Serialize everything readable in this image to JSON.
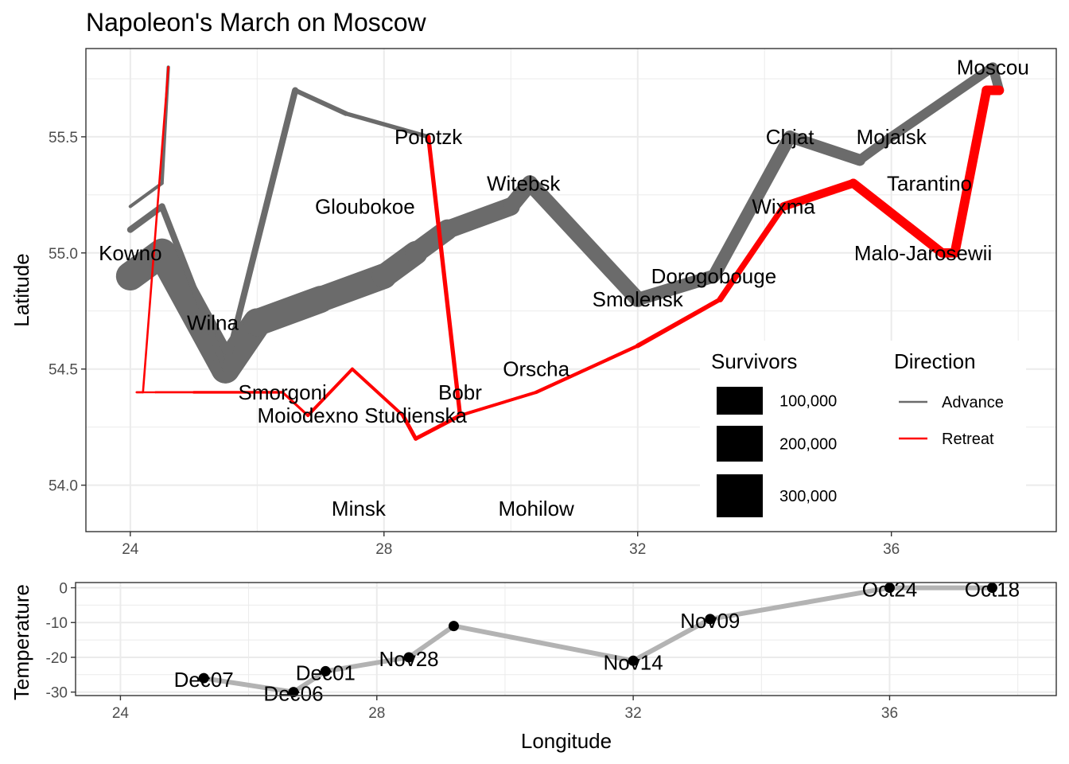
{
  "chart_data": [
    {
      "type": "line",
      "title": "Napoleon's March on Moscow",
      "xlabel": "",
      "ylabel": "Latitude",
      "xlim": [
        23.3,
        38.6
      ],
      "ylim": [
        53.8,
        55.88
      ],
      "x_ticks": [
        24,
        28,
        32,
        36
      ],
      "y_ticks": [
        54.0,
        54.5,
        55.0,
        55.5
      ],
      "x_tick_labels": [
        "24",
        "28",
        "32",
        "36"
      ],
      "y_tick_labels": [
        "54.0",
        "54.5",
        "55.0",
        "55.5"
      ],
      "grid": true,
      "colors": {
        "Advance": "#6b6b6b",
        "Retreat": "#ff0000"
      },
      "troops": [
        {
          "lon": 24.0,
          "lat": 54.9,
          "survivors": 340000,
          "direction": "Advance",
          "group": 1
        },
        {
          "lon": 24.5,
          "lat": 55.0,
          "survivors": 340000,
          "direction": "Advance",
          "group": 1
        },
        {
          "lon": 25.5,
          "lat": 54.5,
          "survivors": 340000,
          "direction": "Advance",
          "group": 1
        },
        {
          "lon": 26.0,
          "lat": 54.7,
          "survivors": 320000,
          "direction": "Advance",
          "group": 1
        },
        {
          "lon": 27.0,
          "lat": 54.8,
          "survivors": 300000,
          "direction": "Advance",
          "group": 1
        },
        {
          "lon": 28.0,
          "lat": 54.9,
          "survivors": 280000,
          "direction": "Advance",
          "group": 1
        },
        {
          "lon": 28.5,
          "lat": 55.0,
          "survivors": 240000,
          "direction": "Advance",
          "group": 1
        },
        {
          "lon": 29.0,
          "lat": 55.1,
          "survivors": 210000,
          "direction": "Advance",
          "group": 1
        },
        {
          "lon": 30.0,
          "lat": 55.2,
          "survivors": 180000,
          "direction": "Advance",
          "group": 1
        },
        {
          "lon": 30.3,
          "lat": 55.3,
          "survivors": 175000,
          "direction": "Advance",
          "group": 1
        },
        {
          "lon": 32.0,
          "lat": 54.8,
          "survivors": 145000,
          "direction": "Advance",
          "group": 1
        },
        {
          "lon": 33.2,
          "lat": 54.9,
          "survivors": 140000,
          "direction": "Advance",
          "group": 1
        },
        {
          "lon": 34.4,
          "lat": 55.5,
          "survivors": 127100,
          "direction": "Advance",
          "group": 1
        },
        {
          "lon": 35.5,
          "lat": 55.4,
          "survivors": 100000,
          "direction": "Advance",
          "group": 1
        },
        {
          "lon": 36.0,
          "lat": 55.5,
          "survivors": 100000,
          "direction": "Advance",
          "group": 1
        },
        {
          "lon": 37.6,
          "lat": 55.8,
          "survivors": 100000,
          "direction": "Advance",
          "group": 1
        },
        {
          "lon": 37.7,
          "lat": 55.7,
          "survivors": 100000,
          "direction": "Retreat",
          "group": 1
        },
        {
          "lon": 37.5,
          "lat": 55.7,
          "survivors": 98000,
          "direction": "Retreat",
          "group": 1
        },
        {
          "lon": 37.0,
          "lat": 55.0,
          "survivors": 97000,
          "direction": "Retreat",
          "group": 1
        },
        {
          "lon": 36.8,
          "lat": 55.0,
          "survivors": 96000,
          "direction": "Retreat",
          "group": 1
        },
        {
          "lon": 35.4,
          "lat": 55.3,
          "survivors": 87000,
          "direction": "Retreat",
          "group": 1
        },
        {
          "lon": 34.3,
          "lat": 55.2,
          "survivors": 55000,
          "direction": "Retreat",
          "group": 1
        },
        {
          "lon": 33.3,
          "lat": 54.8,
          "survivors": 37000,
          "direction": "Retreat",
          "group": 1
        },
        {
          "lon": 32.0,
          "lat": 54.6,
          "survivors": 24000,
          "direction": "Retreat",
          "group": 1
        },
        {
          "lon": 30.4,
          "lat": 54.4,
          "survivors": 20000,
          "direction": "Retreat",
          "group": 1
        },
        {
          "lon": 29.2,
          "lat": 54.3,
          "survivors": 20000,
          "direction": "Retreat",
          "group": 1
        },
        {
          "lon": 28.5,
          "lat": 54.2,
          "survivors": 20000,
          "direction": "Retreat",
          "group": 1
        },
        {
          "lon": 28.3,
          "lat": 54.3,
          "survivors": 20000,
          "direction": "Retreat",
          "group": 1
        },
        {
          "lon": 27.5,
          "lat": 54.5,
          "survivors": 20000,
          "direction": "Retreat",
          "group": 1
        },
        {
          "lon": 26.8,
          "lat": 54.3,
          "survivors": 12000,
          "direction": "Retreat",
          "group": 1
        },
        {
          "lon": 26.4,
          "lat": 54.4,
          "survivors": 14000,
          "direction": "Retreat",
          "group": 1
        },
        {
          "lon": 25.0,
          "lat": 54.4,
          "survivors": 8000,
          "direction": "Retreat",
          "group": 1
        },
        {
          "lon": 24.4,
          "lat": 54.4,
          "survivors": 4000,
          "direction": "Retreat",
          "group": 1
        },
        {
          "lon": 24.2,
          "lat": 54.4,
          "survivors": 4000,
          "direction": "Retreat",
          "group": 1
        },
        {
          "lon": 24.1,
          "lat": 54.4,
          "survivors": 4000,
          "direction": "Retreat",
          "group": 1
        },
        {
          "lon": 24.0,
          "lat": 55.1,
          "survivors": 60000,
          "direction": "Advance",
          "group": 2
        },
        {
          "lon": 24.5,
          "lat": 55.2,
          "survivors": 60000,
          "direction": "Advance",
          "group": 2
        },
        {
          "lon": 25.5,
          "lat": 54.5,
          "survivors": 60000,
          "direction": "Advance",
          "group": 2
        },
        {
          "lon": 26.6,
          "lat": 55.7,
          "survivors": 40000,
          "direction": "Advance",
          "group": 2
        },
        {
          "lon": 27.4,
          "lat": 55.6,
          "survivors": 33000,
          "direction": "Advance",
          "group": 2
        },
        {
          "lon": 28.7,
          "lat": 55.5,
          "survivors": 33000,
          "direction": "Advance",
          "group": 2
        },
        {
          "lon": 28.7,
          "lat": 55.5,
          "survivors": 33000,
          "direction": "Retreat",
          "group": 2
        },
        {
          "lon": 29.2,
          "lat": 54.3,
          "survivors": 30000,
          "direction": "Retreat",
          "group": 2
        },
        {
          "lon": 28.5,
          "lat": 54.2,
          "survivors": 30000,
          "direction": "Retreat",
          "group": 2
        },
        {
          "lon": 28.3,
          "lat": 54.3,
          "survivors": 28000,
          "direction": "Retreat",
          "group": 2
        },
        {
          "lon": 24.0,
          "lat": 55.2,
          "survivors": 22000,
          "direction": "Advance",
          "group": 3
        },
        {
          "lon": 24.5,
          "lat": 55.3,
          "survivors": 22000,
          "direction": "Advance",
          "group": 3
        },
        {
          "lon": 24.6,
          "lat": 55.8,
          "survivors": 6000,
          "direction": "Advance",
          "group": 3
        },
        {
          "lon": 24.6,
          "lat": 55.8,
          "survivors": 6000,
          "direction": "Retreat",
          "group": 3
        },
        {
          "lon": 24.2,
          "lat": 54.4,
          "survivors": 6000,
          "direction": "Retreat",
          "group": 3
        },
        {
          "lon": 24.1,
          "lat": 54.4,
          "survivors": 6000,
          "direction": "Retreat",
          "group": 3
        }
      ],
      "cities": [
        {
          "name": "Kowno",
          "lon": 24.0,
          "lat": 55.0
        },
        {
          "name": "Wilna",
          "lon": 25.3,
          "lat": 54.7
        },
        {
          "name": "Smorgoni",
          "lon": 26.4,
          "lat": 54.4
        },
        {
          "name": "Moiodexno",
          "lon": 26.8,
          "lat": 54.3
        },
        {
          "name": "Gloubokoe",
          "lon": 27.7,
          "lat": 55.2
        },
        {
          "name": "Minsk",
          "lon": 27.6,
          "lat": 53.9
        },
        {
          "name": "Studienska",
          "lon": 28.5,
          "lat": 54.3
        },
        {
          "name": "Polotzk",
          "lon": 28.7,
          "lat": 55.5
        },
        {
          "name": "Bobr",
          "lon": 29.2,
          "lat": 54.4
        },
        {
          "name": "Witebsk",
          "lon": 30.2,
          "lat": 55.3
        },
        {
          "name": "Orscha",
          "lon": 30.4,
          "lat": 54.5
        },
        {
          "name": "Mohilow",
          "lon": 30.4,
          "lat": 53.9
        },
        {
          "name": "Smolensk",
          "lon": 32.0,
          "lat": 54.8
        },
        {
          "name": "Dorogobouge",
          "lon": 33.2,
          "lat": 54.9
        },
        {
          "name": "Wixma",
          "lon": 34.3,
          "lat": 55.2
        },
        {
          "name": "Chjat",
          "lon": 34.4,
          "lat": 55.5
        },
        {
          "name": "Mojaisk",
          "lon": 36.0,
          "lat": 55.5
        },
        {
          "name": "Moscou",
          "lon": 37.6,
          "lat": 55.8
        },
        {
          "name": "Tarantino",
          "lon": 36.6,
          "lat": 55.3
        },
        {
          "name": "Malo-Jarosewii",
          "lon": 36.5,
          "lat": 55.0
        }
      ],
      "legend": {
        "placement": "bottom-right inside plot",
        "survivors_title": "Survivors",
        "survivors_items": [
          {
            "label": "100,000",
            "value": 100000
          },
          {
            "label": "200,000",
            "value": 200000
          },
          {
            "label": "300,000",
            "value": 300000
          }
        ],
        "direction_title": "Direction",
        "direction_items": [
          {
            "label": "Advance",
            "color": "#6b6b6b"
          },
          {
            "label": "Retreat",
            "color": "#ff0000"
          }
        ]
      }
    },
    {
      "type": "line",
      "title": "",
      "xlabel": "Longitude",
      "ylabel": "Temperature",
      "xlim": [
        23.3,
        38.6
      ],
      "ylim": [
        -31,
        1.5
      ],
      "x_ticks": [
        24,
        28,
        32,
        36
      ],
      "y_ticks": [
        0,
        -10,
        -20,
        -30
      ],
      "x_tick_labels": [
        "24",
        "28",
        "32",
        "36"
      ],
      "y_tick_labels": [
        "0",
        "-10",
        "-20",
        "-30"
      ],
      "grid": true,
      "line_color": "#b3b3b3",
      "points": [
        {
          "lon": 37.6,
          "temp": 0,
          "label": "Oct18"
        },
        {
          "lon": 36.0,
          "temp": 0,
          "label": "Oct24"
        },
        {
          "lon": 33.2,
          "temp": -9,
          "label": "Nov09"
        },
        {
          "lon": 32.0,
          "temp": -21,
          "label": "Nov14"
        },
        {
          "lon": 29.2,
          "temp": -11,
          "label": ""
        },
        {
          "lon": 28.5,
          "temp": -20,
          "label": "Nov28"
        },
        {
          "lon": 27.2,
          "temp": -24,
          "label": "Dec01"
        },
        {
          "lon": 26.7,
          "temp": -30,
          "label": "Dec06"
        },
        {
          "lon": 25.3,
          "temp": -26,
          "label": "Dec07"
        }
      ]
    }
  ]
}
